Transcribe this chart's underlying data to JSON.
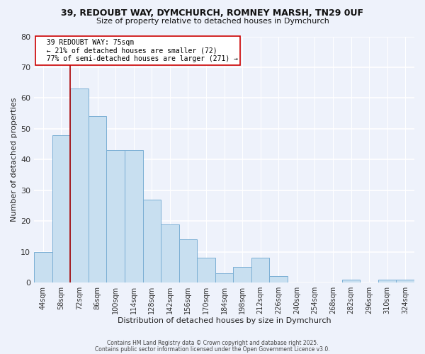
{
  "title1": "39, REDOUBT WAY, DYMCHURCH, ROMNEY MARSH, TN29 0UF",
  "title2": "Size of property relative to detached houses in Dymchurch",
  "xlabel": "Distribution of detached houses by size in Dymchurch",
  "ylabel": "Number of detached properties",
  "bar_labels": [
    "44sqm",
    "58sqm",
    "72sqm",
    "86sqm",
    "100sqm",
    "114sqm",
    "128sqm",
    "142sqm",
    "156sqm",
    "170sqm",
    "184sqm",
    "198sqm",
    "212sqm",
    "226sqm",
    "240sqm",
    "254sqm",
    "268sqm",
    "282sqm",
    "296sqm",
    "310sqm",
    "324sqm"
  ],
  "bar_values": [
    10,
    48,
    63,
    54,
    43,
    43,
    27,
    19,
    14,
    8,
    3,
    5,
    8,
    2,
    0,
    0,
    0,
    1,
    0,
    1,
    1
  ],
  "bar_color": "#c8dff0",
  "bar_edge_color": "#7bafd4",
  "vline_x_index": 2,
  "vline_color": "#aa0000",
  "annotation_title": "39 REDOUBT WAY: 75sqm",
  "annotation_line1": "← 21% of detached houses are smaller (72)",
  "annotation_line2": "77% of semi-detached houses are larger (271) →",
  "annotation_box_color": "white",
  "annotation_box_edge": "#cc0000",
  "ylim": [
    0,
    80
  ],
  "yticks": [
    0,
    10,
    20,
    30,
    40,
    50,
    60,
    70,
    80
  ],
  "footer1": "Contains HM Land Registry data © Crown copyright and database right 2025.",
  "footer2": "Contains public sector information licensed under the Open Government Licence v3.0.",
  "bg_color": "#eef2fb"
}
